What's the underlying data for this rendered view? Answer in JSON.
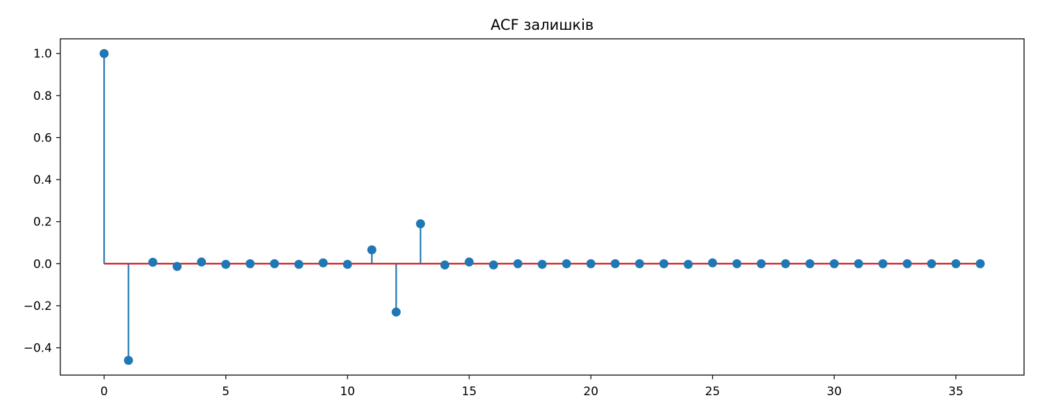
{
  "chart_data": {
    "type": "stem",
    "title": "ACF залишків",
    "xlabel": "",
    "ylabel": "",
    "xlim": [
      -1.8,
      37.8
    ],
    "ylim": [
      -0.53,
      1.07
    ],
    "x_ticks": [
      0,
      5,
      10,
      15,
      20,
      25,
      30,
      35
    ],
    "x_tick_labels": [
      "0",
      "5",
      "10",
      "15",
      "20",
      "25",
      "30",
      "35"
    ],
    "y_ticks": [
      -0.4,
      -0.2,
      0.0,
      0.2,
      0.4,
      0.6,
      0.8,
      1.0
    ],
    "y_tick_labels": [
      "−0.4",
      "−0.2",
      "0.0",
      "0.2",
      "0.4",
      "0.6",
      "0.8",
      "1.0"
    ],
    "grid": false,
    "baseline": 0,
    "x": [
      0,
      1,
      2,
      3,
      4,
      5,
      6,
      7,
      8,
      9,
      10,
      11,
      12,
      13,
      14,
      15,
      16,
      17,
      18,
      19,
      20,
      21,
      22,
      23,
      24,
      25,
      26,
      27,
      28,
      29,
      30,
      31,
      32,
      33,
      34,
      35,
      36
    ],
    "values": [
      1.0,
      -0.46,
      0.007,
      -0.013,
      0.008,
      -0.003,
      0.0,
      0.0,
      -0.003,
      0.004,
      -0.003,
      0.066,
      -0.23,
      0.19,
      -0.006,
      0.008,
      -0.006,
      0.0,
      -0.003,
      0.0,
      0.0,
      0.0,
      0.0,
      0.0,
      -0.003,
      0.004,
      0.0,
      0.0,
      0.0,
      0.0,
      0.0,
      0.0,
      0.0,
      0.0,
      0.0,
      0.0,
      0.0
    ],
    "colors": {
      "stem": "#1f77b4",
      "marker": "#1f77b4",
      "baseline": "#d62728",
      "axes": "#000000"
    }
  }
}
